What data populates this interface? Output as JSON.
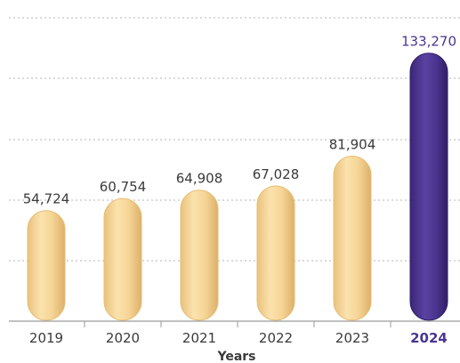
{
  "chart_data": {
    "type": "bar",
    "categories": [
      "2019",
      "2020",
      "2021",
      "2022",
      "2023",
      "2024"
    ],
    "values": [
      54724,
      60754,
      64908,
      67028,
      81904,
      133270
    ],
    "value_labels": [
      "54,724",
      "60,754",
      "64,908",
      "67,028",
      "81,904",
      "133,270"
    ],
    "highlight_index": 5,
    "xlabel": "Years",
    "ylabel": "",
    "ylim": [
      0,
      150000
    ],
    "grid": true,
    "colors": {
      "bar": "#f7d79a",
      "bar_edge": "#e6bd72",
      "highlight_bar": "#4b348f",
      "highlight_text": "#4a3592",
      "grid": "#b5b5b5",
      "axis": "#9a9a9a",
      "text": "#3a3a3a"
    }
  }
}
